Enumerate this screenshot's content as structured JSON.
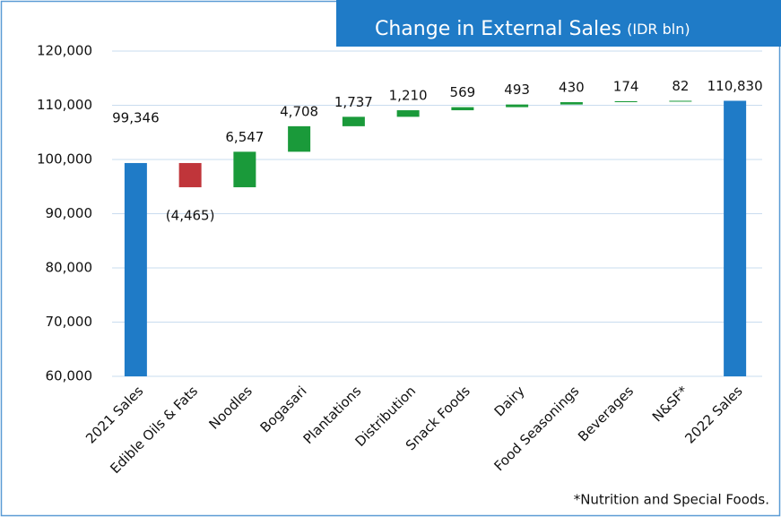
{
  "chart_data": {
    "type": "waterfall",
    "title": "Change in External Sales",
    "subtitle": "(IDR bln)",
    "footnote": "*Nutrition and Special Foods.",
    "categories": [
      "2021 Sales",
      "Edible Oils & Fats",
      "Noodles",
      "Bogasari",
      "Plantations",
      "Distribution",
      "Snack Foods",
      "Dairy",
      "Food Seasonings",
      "Beverages",
      "N&SF*",
      "2022 Sales"
    ],
    "values": [
      99346,
      -4465,
      6547,
      4708,
      1737,
      1210,
      569,
      493,
      430,
      174,
      82,
      110830
    ],
    "value_labels": [
      "99,346",
      "(4,465)",
      "6,547",
      "4,708",
      "1,737",
      "1,210",
      "569",
      "493",
      "430",
      "174",
      "82",
      "110,830"
    ],
    "total_color": "#1f7bc7",
    "increase_color": "#1a9a3a",
    "decrease_color": "#c0353a",
    "ylim": [
      60000,
      120000
    ],
    "yticks": [
      {
        "value": 60000,
        "label": "60,000"
      },
      {
        "value": 70000,
        "label": "70,000"
      },
      {
        "value": 80000,
        "label": "80,000"
      },
      {
        "value": 90000,
        "label": "90,000"
      },
      {
        "value": 100000,
        "label": "100,000"
      },
      {
        "value": 110000,
        "label": "110,000"
      },
      {
        "value": 120000,
        "label": "120,000"
      }
    ],
    "grid": true
  }
}
